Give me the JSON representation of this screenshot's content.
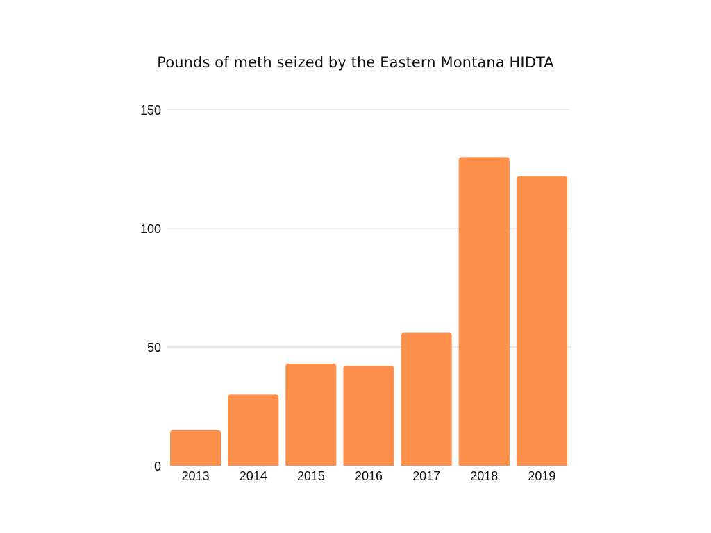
{
  "chart_data": {
    "type": "bar",
    "title": "Pounds of meth seized by the Eastern Montana HIDTA",
    "xlabel": "",
    "ylabel": "",
    "categories": [
      "2013",
      "2014",
      "2015",
      "2016",
      "2017",
      "2018",
      "2019"
    ],
    "values": [
      15,
      30,
      43,
      42,
      56,
      130,
      122
    ],
    "ylim": [
      0,
      150
    ],
    "yticks": [
      "0",
      "50",
      "100",
      "150"
    ],
    "grid": "horizontal",
    "legend": "none",
    "bar_color": "#fe904c",
    "grid_color": "#d4d4d4"
  }
}
